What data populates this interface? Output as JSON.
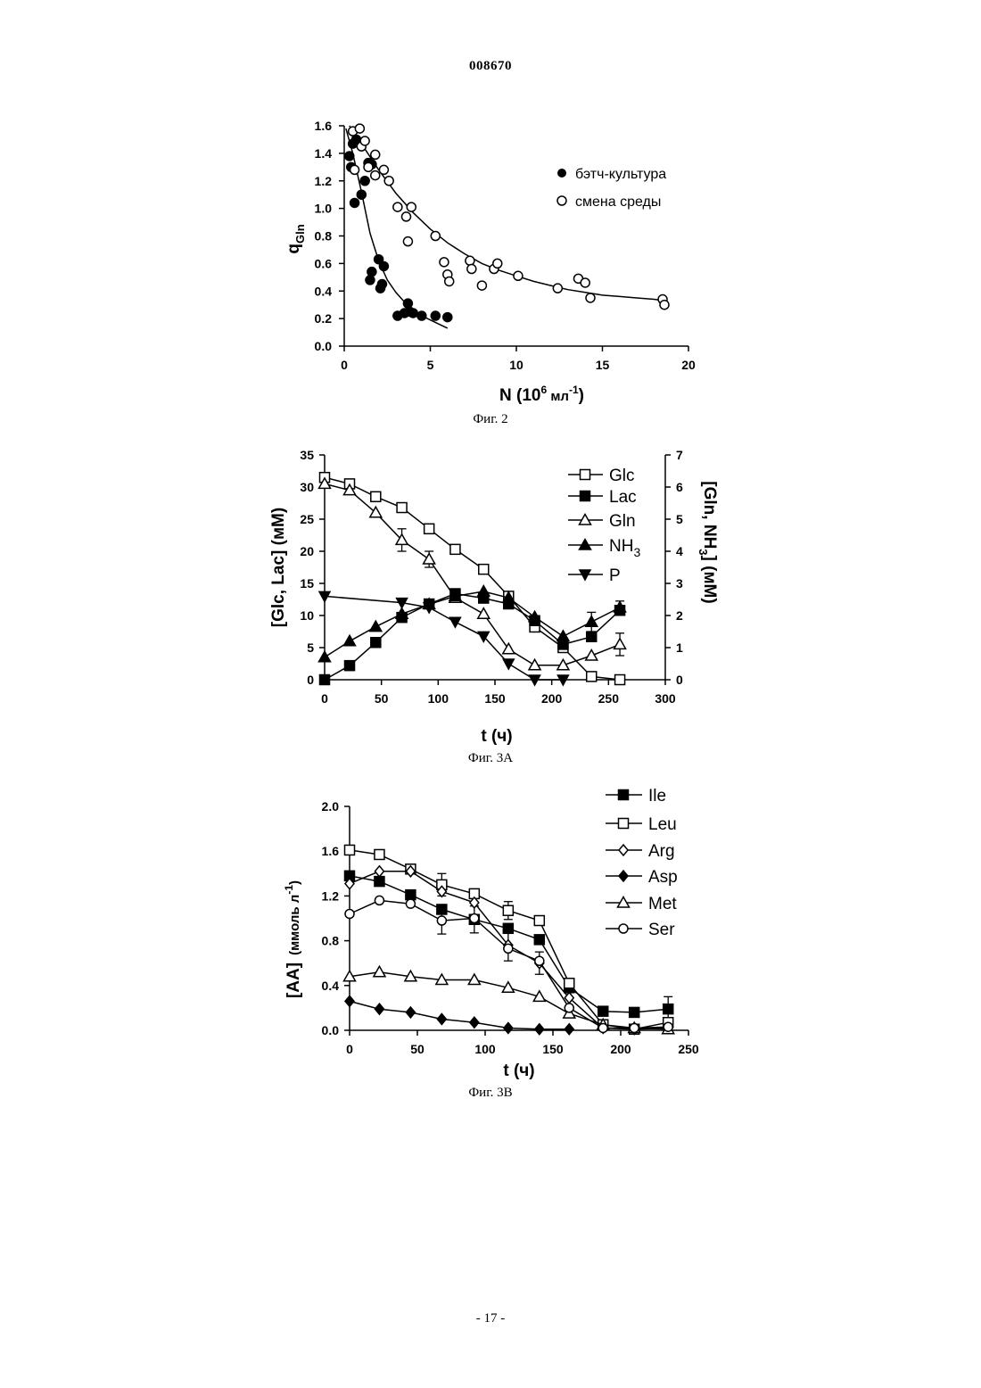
{
  "page": {
    "header": "008670",
    "footer": "- 17 -"
  },
  "fig2": {
    "caption": "Фиг. 2",
    "ylabel": "q",
    "ylabel_sub": "Gln",
    "xlabel_main": "N (10",
    "xlabel_sup": "6",
    "xlabel_unit": " мл",
    "xlabel_unit_sup": "-1",
    "xlabel_close": ")",
    "xlim": [
      0,
      20
    ],
    "ylim": [
      0,
      1.6
    ],
    "xticks": [
      "0",
      "5",
      "10",
      "15",
      "20"
    ],
    "yticks": [
      "0.0",
      "0.2",
      "0.4",
      "0.6",
      "0.8",
      "1.0",
      "1.2",
      "1.4",
      "1.6"
    ],
    "legend": {
      "batch": "бэтч-культура",
      "medium": "смена среды"
    }
  },
  "fig3a": {
    "caption": "Фиг. 3А",
    "ylabel_left": "[Glc, Lac] (мМ)",
    "ylabel_right": "[Gln, NH",
    "ylabel_right_sub": "3",
    "ylabel_right_end": "] (мМ)",
    "xlabel": "t (ч)",
    "xlim": [
      0,
      300
    ],
    "ylim_left": [
      0,
      35
    ],
    "ylim_right": [
      0,
      7
    ],
    "xticks": [
      "0",
      "50",
      "100",
      "150",
      "200",
      "250",
      "300"
    ],
    "yticks_left": [
      "0",
      "5",
      "10",
      "15",
      "20",
      "25",
      "30",
      "35"
    ],
    "yticks_right": [
      "0",
      "1",
      "2",
      "3",
      "4",
      "5",
      "6",
      "7"
    ],
    "legend": {
      "glc": "Glc",
      "lac": "Lac",
      "gln": "Gln",
      "nh3": "NH",
      "nh3_sub": "3",
      "p": "P"
    }
  },
  "fig3b": {
    "caption": "Фиг. 3В",
    "ylabel_main": "[AA]",
    "ylabel_unit": "(ммоль л",
    "ylabel_unit_sup": "-1",
    "ylabel_unit_close": ")",
    "xlabel": "t (ч)",
    "xlim": [
      0,
      250
    ],
    "ylim": [
      0,
      2.0
    ],
    "xticks": [
      "0",
      "50",
      "100",
      "150",
      "200",
      "250"
    ],
    "yticks": [
      "0.0",
      "0.4",
      "0.8",
      "1.2",
      "1.6",
      "2.0"
    ],
    "legend": {
      "ile": "Ile",
      "leu": "Leu",
      "arg": "Arg",
      "asp": "Asp",
      "met": "Met",
      "ser": "Ser"
    }
  },
  "chart_data": [
    {
      "type": "scatter",
      "xlim": [
        0,
        20
      ],
      "ylim": [
        0,
        1.6
      ],
      "series": [
        {
          "name": "бэтч-культура",
          "marker": "filled-circle",
          "points": [
            [
              0.3,
              1.38
            ],
            [
              0.4,
              1.3
            ],
            [
              0.5,
              1.47
            ],
            [
              0.6,
              1.04
            ],
            [
              0.7,
              1.5
            ],
            [
              1.0,
              1.1
            ],
            [
              1.2,
              1.2
            ],
            [
              1.4,
              1.33
            ],
            [
              1.6,
              1.32
            ],
            [
              1.5,
              0.48
            ],
            [
              1.6,
              0.54
            ],
            [
              2.0,
              0.63
            ],
            [
              2.1,
              0.42
            ],
            [
              2.2,
              0.45
            ],
            [
              2.3,
              0.58
            ],
            [
              3.1,
              0.22
            ],
            [
              3.5,
              0.24
            ],
            [
              3.7,
              0.31
            ],
            [
              3.8,
              0.25
            ],
            [
              4.0,
              0.24
            ],
            [
              4.5,
              0.22
            ],
            [
              5.3,
              0.22
            ],
            [
              6.0,
              0.21
            ]
          ],
          "fit": [
            [
              0.1,
              1.58
            ],
            [
              0.5,
              1.4
            ],
            [
              1.0,
              1.12
            ],
            [
              1.5,
              0.82
            ],
            [
              2.0,
              0.62
            ],
            [
              2.5,
              0.48
            ],
            [
              3.0,
              0.39
            ],
            [
              3.5,
              0.32
            ],
            [
              4.0,
              0.27
            ],
            [
              4.5,
              0.22
            ],
            [
              5.0,
              0.19
            ],
            [
              5.5,
              0.16
            ],
            [
              6.0,
              0.13
            ]
          ]
        },
        {
          "name": "смена среды",
          "marker": "open-circle",
          "points": [
            [
              0.5,
              1.56
            ],
            [
              0.6,
              1.28
            ],
            [
              0.9,
              1.58
            ],
            [
              1.0,
              1.45
            ],
            [
              1.2,
              1.49
            ],
            [
              1.4,
              1.3
            ],
            [
              1.8,
              1.39
            ],
            [
              1.8,
              1.24
            ],
            [
              2.3,
              1.28
            ],
            [
              2.6,
              1.2
            ],
            [
              3.1,
              1.01
            ],
            [
              3.6,
              0.94
            ],
            [
              3.7,
              0.76
            ],
            [
              3.9,
              1.01
            ],
            [
              5.3,
              0.8
            ],
            [
              5.8,
              0.61
            ],
            [
              6.0,
              0.52
            ],
            [
              6.1,
              0.47
            ],
            [
              7.3,
              0.62
            ],
            [
              7.4,
              0.56
            ],
            [
              8.0,
              0.44
            ],
            [
              8.7,
              0.56
            ],
            [
              8.9,
              0.6
            ],
            [
              10.1,
              0.51
            ],
            [
              12.4,
              0.42
            ],
            [
              13.6,
              0.49
            ],
            [
              14.0,
              0.46
            ],
            [
              14.3,
              0.35
            ],
            [
              18.5,
              0.34
            ],
            [
              18.6,
              0.3
            ]
          ],
          "fit": [
            [
              0.3,
              1.6
            ],
            [
              1,
              1.47
            ],
            [
              2,
              1.28
            ],
            [
              3,
              1.11
            ],
            [
              4,
              0.97
            ],
            [
              5,
              0.85
            ],
            [
              6,
              0.75
            ],
            [
              7,
              0.67
            ],
            [
              8,
              0.6
            ],
            [
              9,
              0.55
            ],
            [
              10,
              0.51
            ],
            [
              11,
              0.47
            ],
            [
              12,
              0.44
            ],
            [
              13,
              0.41
            ],
            [
              14,
              0.39
            ],
            [
              15,
              0.37
            ],
            [
              16,
              0.36
            ],
            [
              17,
              0.35
            ],
            [
              18,
              0.34
            ],
            [
              18.6,
              0.33
            ]
          ]
        }
      ]
    },
    {
      "type": "line",
      "xlim": [
        0,
        300
      ],
      "ylim_left": [
        0,
        35
      ],
      "ylim_right": [
        0,
        7
      ],
      "series": [
        {
          "name": "Glc",
          "axis": "left",
          "marker": "open-square",
          "x": [
            0,
            22,
            45,
            68,
            92,
            115,
            140,
            162,
            185,
            210,
            235,
            260
          ],
          "values": [
            31.5,
            30.5,
            28.5,
            26.8,
            23.5,
            20.3,
            17.2,
            13.0,
            8.2,
            5.0,
            0.5,
            0.0
          ]
        },
        {
          "name": "Lac",
          "axis": "left",
          "marker": "filled-square",
          "x": [
            0,
            22,
            45,
            68,
            92,
            115,
            140,
            162,
            185,
            210,
            235,
            260
          ],
          "values": [
            0.0,
            2.2,
            5.8,
            9.7,
            11.8,
            13.4,
            12.7,
            11.8,
            9.2,
            5.5,
            6.7,
            10.8
          ]
        },
        {
          "name": "Gln",
          "axis": "right",
          "marker": "open-triangle",
          "x": [
            0,
            22,
            45,
            68,
            92,
            115,
            140,
            162,
            185,
            210,
            235,
            260
          ],
          "values": [
            6.1,
            5.9,
            5.2,
            4.35,
            3.75,
            2.55,
            2.05,
            0.95,
            0.45,
            0.45,
            0.75,
            1.1
          ]
        },
        {
          "name": "NH3",
          "axis": "right",
          "marker": "filled-triangle",
          "x": [
            0,
            22,
            45,
            68,
            92,
            115,
            140,
            162,
            185,
            210,
            235,
            260
          ],
          "values": [
            0.7,
            1.2,
            1.65,
            2.05,
            2.35,
            2.6,
            2.75,
            2.55,
            1.95,
            1.35,
            1.8,
            2.25
          ]
        },
        {
          "name": "P",
          "axis": "right",
          "marker": "filled-triangle-down",
          "x": [
            0,
            68,
            92,
            115,
            140,
            162,
            185,
            210
          ],
          "values": [
            2.6,
            2.4,
            2.25,
            1.8,
            1.35,
            0.5,
            0.0,
            0.0
          ]
        }
      ],
      "error_bars": [
        {
          "series": "Gln",
          "x": 68,
          "value": 4.35,
          "err": 0.35
        },
        {
          "series": "Gln",
          "x": 92,
          "value": 3.75,
          "err": 0.25
        },
        {
          "series": "NH3",
          "x": 235,
          "value": 1.8,
          "err": 0.3
        },
        {
          "series": "NH3",
          "x": 260,
          "value": 2.25,
          "err": 0.2
        },
        {
          "series": "Gln",
          "x": 260,
          "value": 1.1,
          "err": 0.35
        }
      ]
    },
    {
      "type": "line",
      "xlim": [
        0,
        250
      ],
      "ylim": [
        0,
        2.0
      ],
      "series": [
        {
          "name": "Ile",
          "marker": "filled-square",
          "x": [
            0,
            22,
            45,
            68,
            92,
            117,
            140,
            162,
            187,
            210,
            235
          ],
          "values": [
            1.38,
            1.33,
            1.21,
            1.08,
            0.99,
            0.91,
            0.81,
            0.38,
            0.17,
            0.16,
            0.19
          ]
        },
        {
          "name": "Leu",
          "marker": "open-square",
          "x": [
            0,
            22,
            45,
            68,
            92,
            117,
            140,
            162,
            187,
            210,
            235
          ],
          "values": [
            1.61,
            1.57,
            1.44,
            1.3,
            1.22,
            1.07,
            0.98,
            0.42,
            0.05,
            0.01,
            0.07
          ]
        },
        {
          "name": "Arg",
          "marker": "open-diamond",
          "x": [
            0,
            22,
            45,
            68,
            92,
            117,
            140,
            162,
            187,
            210,
            235
          ],
          "values": [
            1.31,
            1.42,
            1.42,
            1.24,
            1.14,
            0.76,
            0.6,
            0.29,
            0.02,
            0.01,
            0.02
          ]
        },
        {
          "name": "Asp",
          "marker": "filled-diamond",
          "x": [
            0,
            22,
            45,
            68,
            92,
            117,
            140,
            162
          ],
          "values": [
            0.26,
            0.19,
            0.16,
            0.1,
            0.07,
            0.02,
            0.01,
            0.01
          ]
        },
        {
          "name": "Met",
          "marker": "open-triangle",
          "x": [
            0,
            22,
            45,
            68,
            92,
            117,
            140,
            162,
            187,
            210,
            235
          ],
          "values": [
            0.48,
            0.52,
            0.48,
            0.45,
            0.45,
            0.38,
            0.3,
            0.15,
            0.05,
            0.02,
            0.01
          ]
        },
        {
          "name": "Ser",
          "marker": "open-circle",
          "x": [
            0,
            22,
            45,
            68,
            92,
            117,
            140,
            162,
            187,
            210,
            235
          ],
          "values": [
            1.04,
            1.16,
            1.13,
            0.98,
            1.0,
            0.73,
            0.62,
            0.2,
            0.02,
            0.02,
            0.03
          ]
        }
      ],
      "error_bars": [
        {
          "series": "Leu",
          "x": 68,
          "value": 1.3,
          "err": 0.1
        },
        {
          "series": "Ser",
          "x": 68,
          "value": 0.98,
          "err": 0.12
        },
        {
          "series": "Ile",
          "x": 92,
          "value": 0.99,
          "err": 0.12
        },
        {
          "series": "Leu",
          "x": 117,
          "value": 1.07,
          "err": 0.08
        },
        {
          "series": "Arg",
          "x": 117,
          "value": 0.76,
          "err": 0.14
        },
        {
          "series": "Arg",
          "x": 140,
          "value": 0.6,
          "err": 0.1
        },
        {
          "series": "Ile",
          "x": 235,
          "value": 0.19,
          "err": 0.11
        }
      ]
    }
  ]
}
